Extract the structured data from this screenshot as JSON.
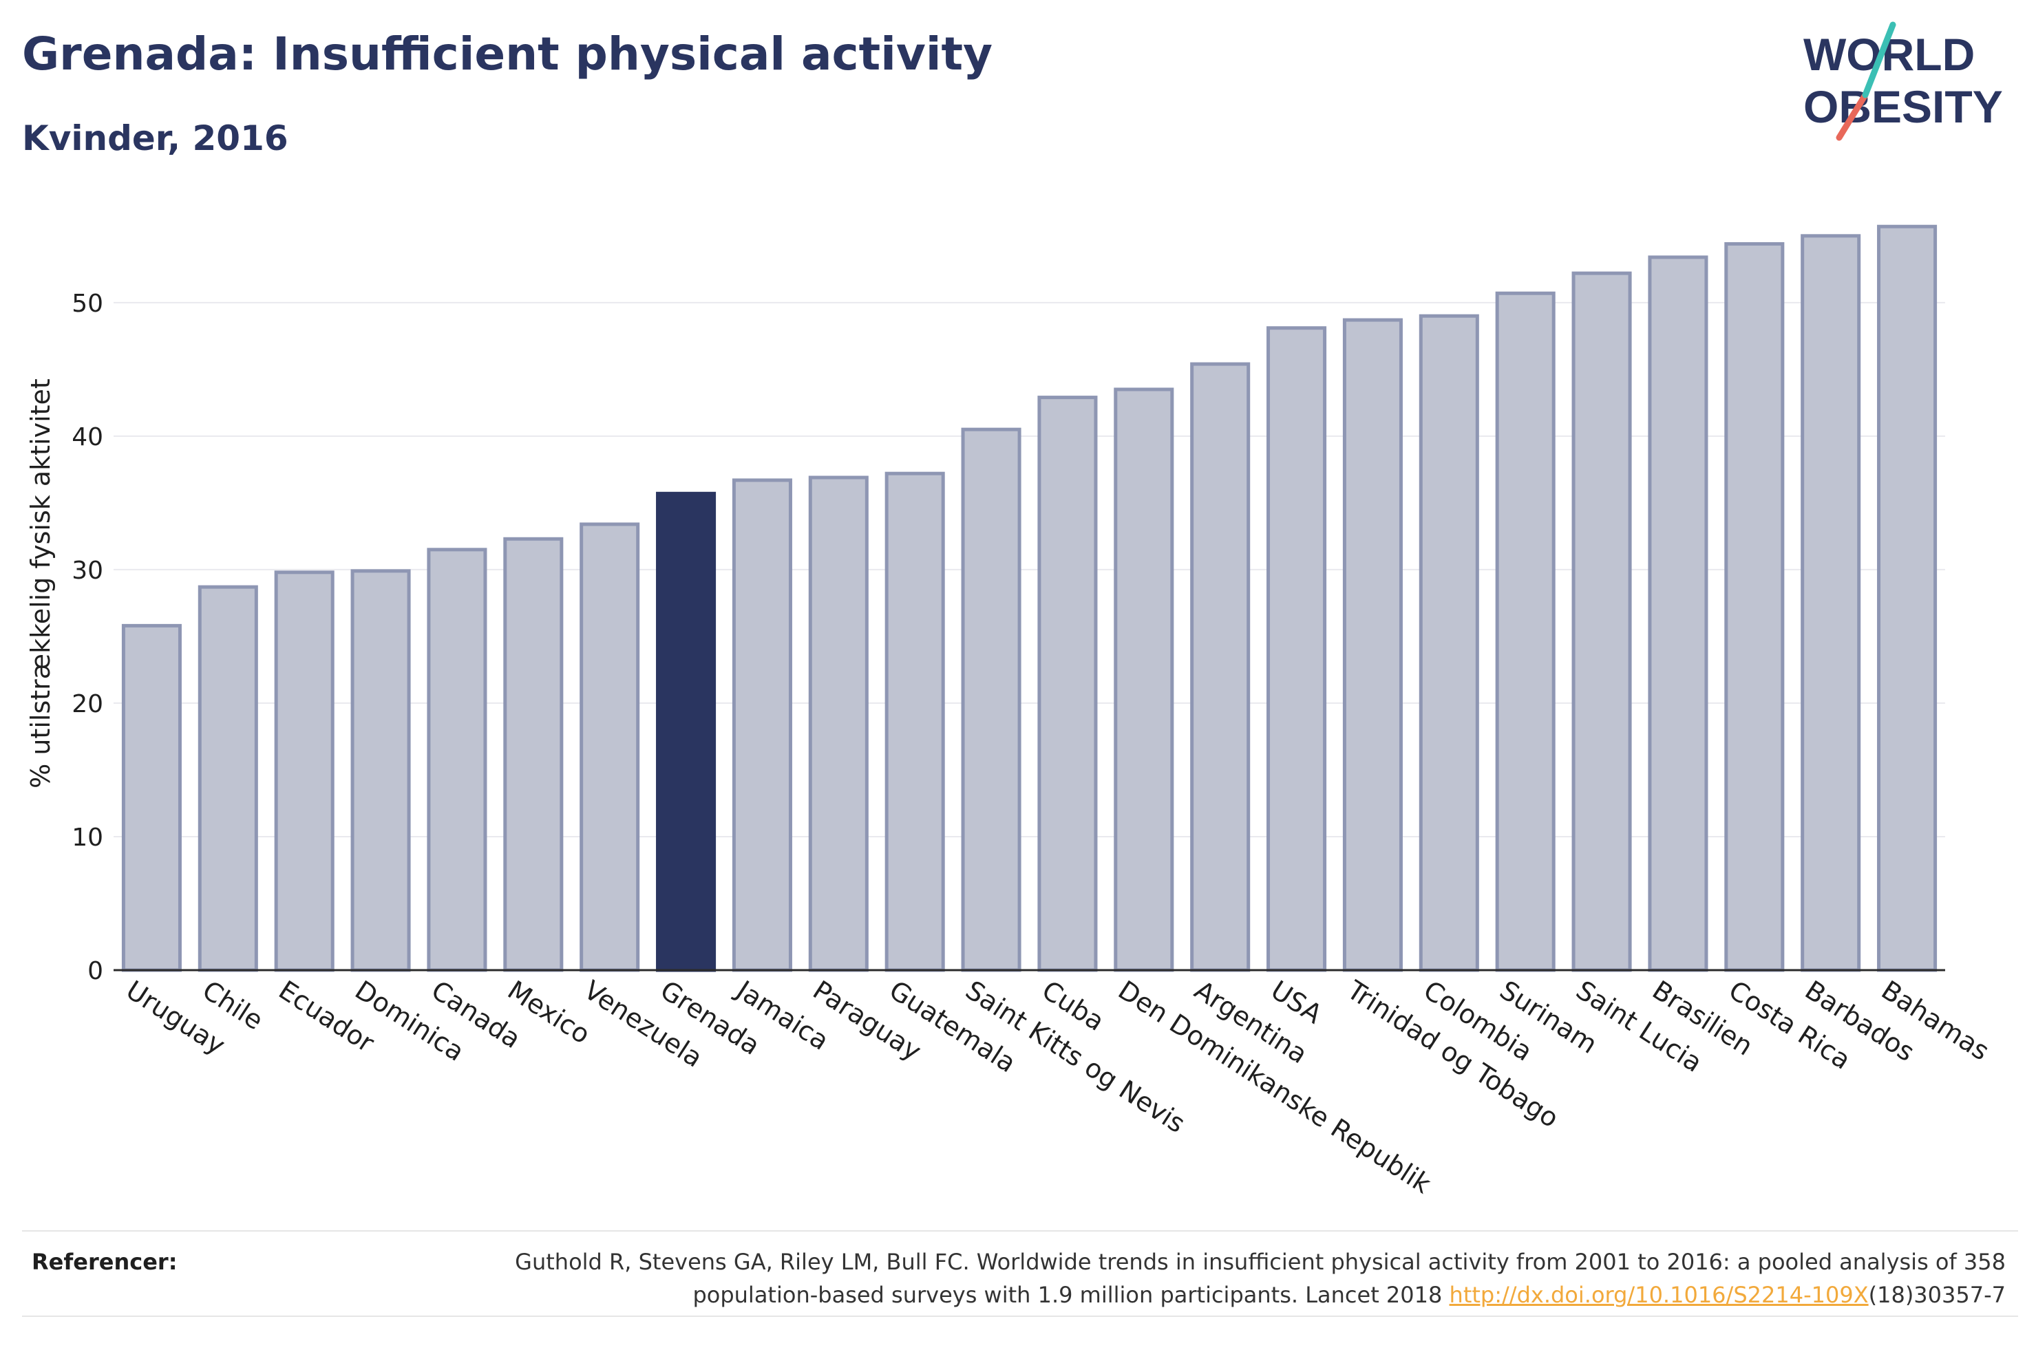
{
  "header": {
    "title": "Grenada: Insufficient physical activity",
    "subtitle": "Kvinder, 2016"
  },
  "logo": {
    "line1": "WORLD",
    "line2": "OBESITY"
  },
  "chart_data": {
    "type": "bar",
    "ylabel": "% utilstrækkelig fysisk aktivitet",
    "xlabel": "",
    "ylim": [
      0,
      57
    ],
    "yticks": [
      0,
      10,
      20,
      30,
      40,
      50
    ],
    "grid": true,
    "highlight": "Grenada",
    "colors": {
      "bar": "#bfc3d1",
      "bar_edge": "#8e96b3",
      "highlight": "#2a3560"
    },
    "categories": [
      "Uruguay",
      "Chile",
      "Ecuador",
      "Dominica",
      "Canada",
      "Mexico",
      "Venezuela",
      "Grenada",
      "Jamaica",
      "Paraguay",
      "Guatemala",
      "Saint Kitts og Nevis",
      "Cuba",
      "Den Dominikanske Republik",
      "Argentina",
      "USA",
      "Trinidad og Tobago",
      "Colombia",
      "Surinam",
      "Saint Lucia",
      "Brasilien",
      "Costa Rica",
      "Barbados",
      "Bahamas"
    ],
    "values": [
      25.8,
      28.7,
      29.8,
      29.9,
      31.5,
      32.3,
      33.4,
      35.7,
      36.7,
      36.9,
      37.2,
      40.5,
      42.9,
      43.5,
      45.4,
      48.1,
      48.7,
      49.0,
      50.7,
      52.2,
      53.4,
      54.4,
      55.0,
      55.7
    ]
  },
  "references": {
    "label": "Referencer:",
    "text_before": "Guthold R, Stevens GA, Riley LM, Bull FC. Worldwide trends in insufficient physical activity from 2001 to 2016: a pooled analysis of 358 population-based surveys with 1.9 million participants. Lancet 2018 ",
    "link": "http://dx.doi.org/10.1016/S2214-109X",
    "text_after": "(18)30357-7"
  }
}
